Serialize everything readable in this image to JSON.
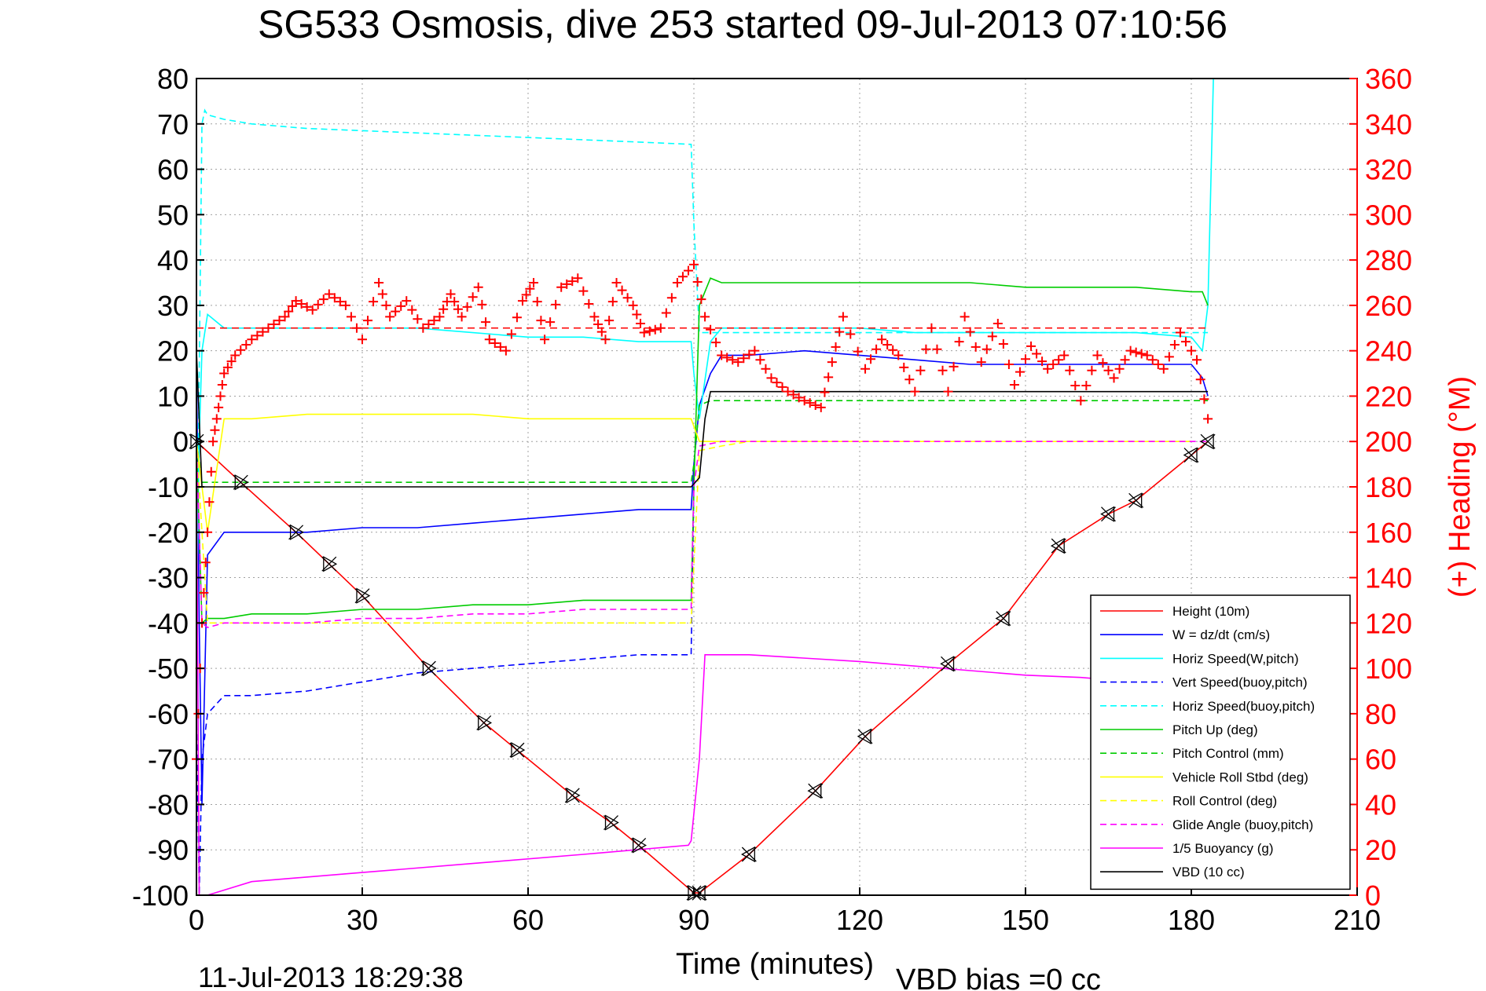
{
  "chart_data": {
    "type": "line",
    "title": "SG533 Osmosis, dive 253 started 09-Jul-2013 07:10:56",
    "xlabel": "Time (minutes)",
    "ylabel": "",
    "y2label": "(+) Heading (°M)",
    "footer_left": "11-Jul-2013 18:29:38",
    "footer_right": "VBD bias =0 cc",
    "xlim": [
      0,
      210
    ],
    "ylim": [
      -100,
      80
    ],
    "y2lim": [
      0,
      360
    ],
    "xticks": [
      0,
      30,
      60,
      90,
      120,
      150,
      180,
      210
    ],
    "yticks": [
      -100,
      -90,
      -80,
      -70,
      -60,
      -50,
      -40,
      -30,
      -20,
      -10,
      0,
      10,
      20,
      30,
      40,
      50,
      60,
      70,
      80
    ],
    "y2ticks": [
      0,
      20,
      40,
      60,
      80,
      100,
      120,
      140,
      160,
      180,
      200,
      220,
      240,
      260,
      280,
      300,
      320,
      340,
      360
    ],
    "grid": true,
    "legend_position": "bottom-right",
    "colors": {
      "axis": "#000000",
      "right_axis": "#ff0000",
      "grid": "#a0a0a0"
    },
    "series": [
      {
        "name": "Height (10m)",
        "color": "#ff0000",
        "style": "solid",
        "x": [
          0,
          8,
          18,
          24,
          30,
          42,
          52,
          58,
          68,
          75,
          80,
          90,
          91,
          100,
          112,
          121,
          136,
          146,
          156,
          165,
          170,
          180,
          183
        ],
        "y": [
          0,
          -9,
          -20,
          -27,
          -34,
          -50,
          -62,
          -68,
          -78,
          -84,
          -89,
          -99.5,
          -99.5,
          -91,
          -77,
          -65,
          -49,
          -39,
          -23,
          -16,
          -13,
          -3,
          0
        ]
      },
      {
        "name": "W = dz/dt (cm/s)",
        "color": "#0000ff",
        "style": "solid",
        "x": [
          0,
          0.5,
          1,
          2,
          5,
          10,
          20,
          30,
          40,
          50,
          60,
          70,
          80,
          89.5,
          90,
          91,
          93,
          95,
          100,
          110,
          120,
          130,
          140,
          150,
          160,
          170,
          180,
          182,
          183
        ],
        "y": [
          20,
          -40,
          -80,
          -25,
          -20,
          -20,
          -20,
          -19,
          -19,
          -18,
          -17,
          -16,
          -15,
          -15,
          -5,
          8,
          15,
          19,
          19,
          20,
          19,
          18,
          17,
          17,
          17,
          17,
          17,
          14,
          10
        ]
      },
      {
        "name": "Horiz Speed(W,pitch)",
        "color": "#00ffff",
        "style": "solid",
        "x": [
          0,
          0.5,
          1,
          2,
          5,
          10,
          20,
          30,
          40,
          50,
          60,
          70,
          80,
          89.5,
          90,
          91,
          93,
          95,
          100,
          110,
          120,
          130,
          140,
          150,
          160,
          170,
          180,
          182,
          183,
          184
        ],
        "y": [
          -40,
          0,
          20,
          28,
          25,
          25,
          25,
          25,
          25,
          24,
          23,
          23,
          22,
          22,
          15,
          5,
          22,
          25,
          25,
          25,
          25,
          24,
          24,
          24,
          24,
          24,
          23,
          20,
          30,
          80
        ]
      },
      {
        "name": "Vert Speed(buoy,pitch)",
        "color": "#0000ff",
        "style": "dashed",
        "x": [
          0,
          0.5,
          1,
          2,
          5,
          10,
          20,
          30,
          40,
          50,
          60,
          70,
          80,
          89.5,
          90
        ],
        "y": [
          -60,
          -100,
          -70,
          -60,
          -56,
          -56,
          -55,
          -53,
          -51,
          -50,
          -49,
          -48,
          -47,
          -47,
          -10
        ]
      },
      {
        "name": "Horiz Speed(buoy,pitch)",
        "color": "#00ffff",
        "style": "dashed",
        "x": [
          0,
          1,
          1.5,
          2,
          5,
          10,
          20,
          30,
          40,
          50,
          60,
          70,
          80,
          89.5,
          90,
          91,
          95,
          110,
          130,
          150,
          170,
          183
        ],
        "y": [
          -40,
          70,
          73,
          72,
          71,
          70,
          69,
          68.5,
          68,
          67.5,
          67,
          66.5,
          66,
          65.5,
          48,
          24,
          24,
          24,
          24,
          24,
          24,
          24
        ]
      },
      {
        "name": "Pitch Up (deg)",
        "color": "#00cc00",
        "style": "solid",
        "x": [
          0,
          1,
          2,
          5,
          10,
          20,
          30,
          40,
          50,
          60,
          70,
          80,
          89.5,
          90,
          91,
          93,
          95,
          100,
          110,
          120,
          130,
          140,
          150,
          160,
          170,
          180,
          182,
          183
        ],
        "y": [
          0,
          -40,
          -39,
          -39,
          -38,
          -38,
          -37,
          -37,
          -36,
          -36,
          -35,
          -35,
          -35,
          -10,
          30,
          36,
          35,
          35,
          35,
          35,
          35,
          35,
          34,
          34,
          34,
          33,
          33,
          30
        ]
      },
      {
        "name": "Pitch Control (mm)",
        "color": "#00cc00",
        "style": "dashed",
        "x": [
          0,
          1,
          2,
          10,
          30,
          60,
          89.5,
          90,
          91,
          93,
          100,
          130,
          160,
          183
        ],
        "y": [
          0,
          -9,
          -9,
          -9,
          -9,
          -9,
          -9,
          -5,
          8,
          9,
          9,
          9,
          9,
          9
        ]
      },
      {
        "name": "Vehicle Roll Stbd (deg)",
        "color": "#ffff00",
        "style": "solid",
        "x": [
          0,
          2,
          5,
          10,
          20,
          30,
          40,
          50,
          60,
          70,
          80,
          89.5,
          91,
          95,
          100,
          110,
          120,
          130,
          140,
          150,
          160,
          170,
          180
        ],
        "y": [
          0,
          -20,
          5,
          5,
          6,
          6,
          6,
          6,
          5,
          5,
          5,
          5,
          0,
          0,
          0,
          0,
          0,
          0,
          0,
          0,
          0,
          0,
          0
        ]
      },
      {
        "name": "Roll Control (deg)",
        "color": "#ffff00",
        "style": "dashed",
        "x": [
          0,
          2,
          5,
          20,
          60,
          89.5,
          91,
          95,
          100,
          140,
          180
        ],
        "y": [
          0,
          -40,
          -40,
          -40,
          -40,
          -40,
          -2,
          -1,
          0,
          0,
          0
        ]
      },
      {
        "name": "Glide Angle (buoy,pitch)",
        "color": "#ff00ff",
        "style": "dashed",
        "x": [
          0,
          1,
          2,
          5,
          10,
          20,
          30,
          40,
          50,
          60,
          70,
          80,
          89.5,
          90,
          91,
          95,
          100,
          130,
          160,
          183
        ],
        "y": [
          0,
          -40,
          -41,
          -40,
          -40,
          -40,
          -39,
          -39,
          -38,
          -38,
          -37,
          -37,
          -37,
          -10,
          -1,
          0,
          0,
          0,
          0,
          0
        ]
      },
      {
        "name": "1/5 Buoyancy (g)",
        "color": "#ff00ff",
        "style": "solid",
        "x": [
          0,
          0.5,
          1,
          2,
          10,
          30,
          50,
          70,
          89,
          89.5,
          91,
          92,
          95,
          100,
          120,
          140,
          150,
          160,
          170,
          180
        ],
        "y": [
          0,
          -100,
          -100,
          -100,
          -97,
          -95,
          -93,
          -91,
          -89,
          -88,
          -70,
          -47,
          -47,
          -47,
          -48.5,
          -50.5,
          -51.5,
          -52,
          -53,
          -54
        ]
      },
      {
        "name": "VBD (10 cc)",
        "color": "#000000",
        "style": "solid",
        "x": [
          0,
          1,
          2,
          10,
          30,
          60,
          89.5,
          91,
          92,
          93,
          100,
          130,
          160,
          183
        ],
        "y": [
          20,
          -10,
          -10,
          -10,
          -10,
          -10,
          -10,
          -8,
          5,
          11,
          11,
          11,
          11,
          11
        ]
      }
    ],
    "heading_series": {
      "name": "(+) Heading (°M)",
      "color": "#ff0000",
      "marker": "+",
      "axis": "right",
      "mean": 250,
      "x": [
        0,
        1,
        2,
        3,
        4,
        5,
        7,
        10,
        13,
        16,
        18,
        21,
        24,
        27,
        30,
        33,
        35,
        38,
        41,
        44,
        46,
        48,
        51,
        53,
        56,
        59,
        61,
        63,
        66,
        69,
        72,
        74,
        76,
        79,
        81,
        84,
        87,
        90,
        92,
        95,
        98,
        101,
        104,
        107,
        110,
        113,
        115,
        117,
        121,
        124,
        127,
        130,
        133,
        136,
        139,
        142,
        145,
        148,
        151,
        154,
        157,
        160,
        163,
        166,
        169,
        172,
        175,
        178,
        181,
        183
      ],
      "y": [
        60,
        120,
        160,
        200,
        215,
        230,
        238,
        245,
        250,
        255,
        262,
        258,
        265,
        260,
        245,
        270,
        255,
        262,
        250,
        255,
        265,
        255,
        268,
        245,
        240,
        262,
        270,
        245,
        268,
        272,
        255,
        245,
        270,
        260,
        248,
        250,
        270,
        278,
        255,
        238,
        235,
        240,
        228,
        222,
        218,
        215,
        235,
        255,
        232,
        245,
        238,
        222,
        250,
        222,
        255,
        235,
        252,
        225,
        242,
        232,
        238,
        218,
        238,
        228,
        240,
        238,
        232,
        248,
        236,
        210
      ]
    }
  }
}
